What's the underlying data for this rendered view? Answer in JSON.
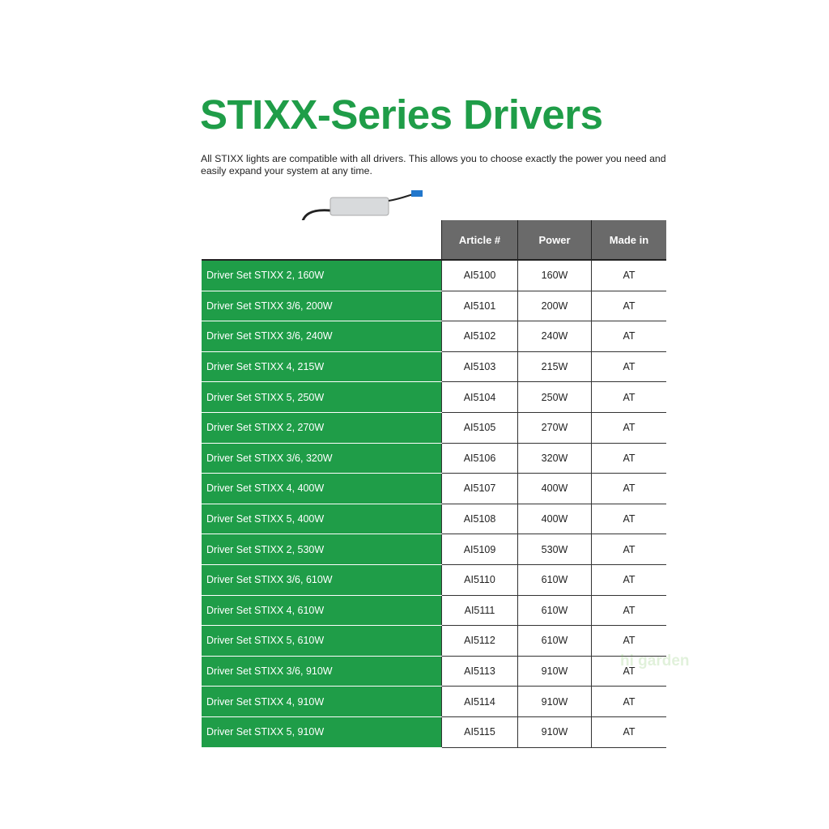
{
  "title": "STIXX-Series Drivers",
  "intro": "All STIXX lights are compatible with all drivers. This allows you to choose exactly the power you need and easily expand your system at any time.",
  "colors": {
    "brand_green": "#1f9d48",
    "header_gray": "#6a6a6a"
  },
  "table": {
    "headers": [
      "",
      "Article #",
      "Power",
      "Made in"
    ],
    "rows": [
      [
        "Driver Set STIXX 2, 160W",
        "AI5100",
        "160W",
        "AT"
      ],
      [
        "Driver Set STIXX 3/6, 200W",
        "AI5101",
        "200W",
        "AT"
      ],
      [
        "Driver Set STIXX 3/6, 240W",
        "AI5102",
        "240W",
        "AT"
      ],
      [
        "Driver Set STIXX 4, 215W",
        "AI5103",
        "215W",
        "AT"
      ],
      [
        "Driver Set STIXX 5, 250W",
        "AI5104",
        "250W",
        "AT"
      ],
      [
        "Driver Set STIXX 2, 270W",
        "AI5105",
        "270W",
        "AT"
      ],
      [
        "Driver Set STIXX 3/6, 320W",
        "AI5106",
        "320W",
        "AT"
      ],
      [
        "Driver Set STIXX 4, 400W",
        "AI5107",
        "400W",
        "AT"
      ],
      [
        "Driver Set STIXX 5, 400W",
        "AI5108",
        "400W",
        "AT"
      ],
      [
        "Driver Set STIXX 2, 530W",
        "AI5109",
        "530W",
        "AT"
      ],
      [
        "Driver Set STIXX 3/6, 610W",
        "AI5110",
        "610W",
        "AT"
      ],
      [
        "Driver Set STIXX 4, 610W",
        "AI5111",
        "610W",
        "AT"
      ],
      [
        "Driver Set STIXX 5, 610W",
        "AI5112",
        "610W",
        "AT"
      ],
      [
        "Driver Set STIXX 3/6, 910W",
        "AI5113",
        "910W",
        "AT"
      ],
      [
        "Driver Set STIXX 4, 910W",
        "AI5114",
        "910W",
        "AT"
      ],
      [
        "Driver Set STIXX 5, 910W",
        "AI5115",
        "910W",
        "AT"
      ]
    ]
  },
  "watermark": "higarden"
}
